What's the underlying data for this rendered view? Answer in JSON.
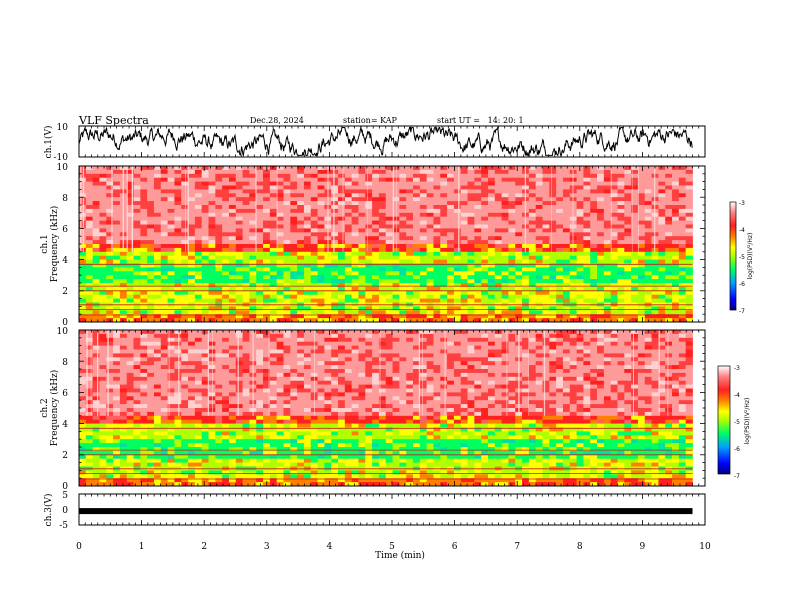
{
  "header": {
    "title": "VLF Spectra",
    "date": "Dec.28, 2024",
    "station": "station= KAP",
    "start": "start UT =   14: 20: 1"
  },
  "colors": {
    "colormap": [
      "#000080",
      "#0000ff",
      "#00a0ff",
      "#00ff60",
      "#b0ff00",
      "#ffff00",
      "#ff8000",
      "#ff2020",
      "#ff8080",
      "#ffffff"
    ]
  },
  "chart_data": [
    {
      "type": "line",
      "ylabel": "ch.1(V)",
      "ylim": [
        -10,
        10
      ],
      "yticks": [
        "10",
        "-10"
      ],
      "note": "waveform trace, values oscillating roughly between -8 and 8"
    },
    {
      "type": "heatmap",
      "ylabel": "ch.1\nFrequency (kHz)",
      "ylabel_lines": [
        "ch.1",
        "Frequency (kHz)"
      ],
      "ylim": [
        0,
        10
      ],
      "yticks": [
        "0",
        "2",
        "4",
        "6",
        "8",
        "10"
      ],
      "colorbar": {
        "label": "log(PSD)(V²/Hz)",
        "range": [
          -7,
          -3
        ],
        "ticks": [
          "-3",
          "-4",
          "-5",
          "-6",
          "-7"
        ]
      },
      "bands_khz": {
        "green_center": 3.2,
        "yellow_low": 2.0,
        "red_above": 4.5
      }
    },
    {
      "type": "heatmap",
      "ylabel_lines": [
        "ch.2",
        "Frequency (kHz)"
      ],
      "ylim": [
        0,
        10
      ],
      "yticks": [
        "0",
        "2",
        "4",
        "6",
        "8",
        "10"
      ],
      "colorbar": {
        "label": "log(PSD)(V²/Hz)",
        "range": [
          -7,
          -3
        ],
        "ticks": [
          "-3",
          "-4",
          "-5",
          "-6",
          "-7"
        ]
      },
      "bands_khz": {
        "green_center": 2.4,
        "yellow_low": 1.0,
        "red_above": 4.0
      }
    },
    {
      "type": "line",
      "ylabel": "ch.3(V)",
      "ylim": [
        -5,
        5
      ],
      "yticks": [
        "5",
        "0",
        "-5"
      ],
      "note": "thick band near constant value about -0.5"
    }
  ],
  "xaxis": {
    "label": "Time (min)",
    "xlim": [
      0,
      10
    ],
    "ticks": [
      "0",
      "1",
      "2",
      "3",
      "4",
      "5",
      "6",
      "7",
      "8",
      "9",
      "10"
    ],
    "data_end_min": 9.8
  }
}
